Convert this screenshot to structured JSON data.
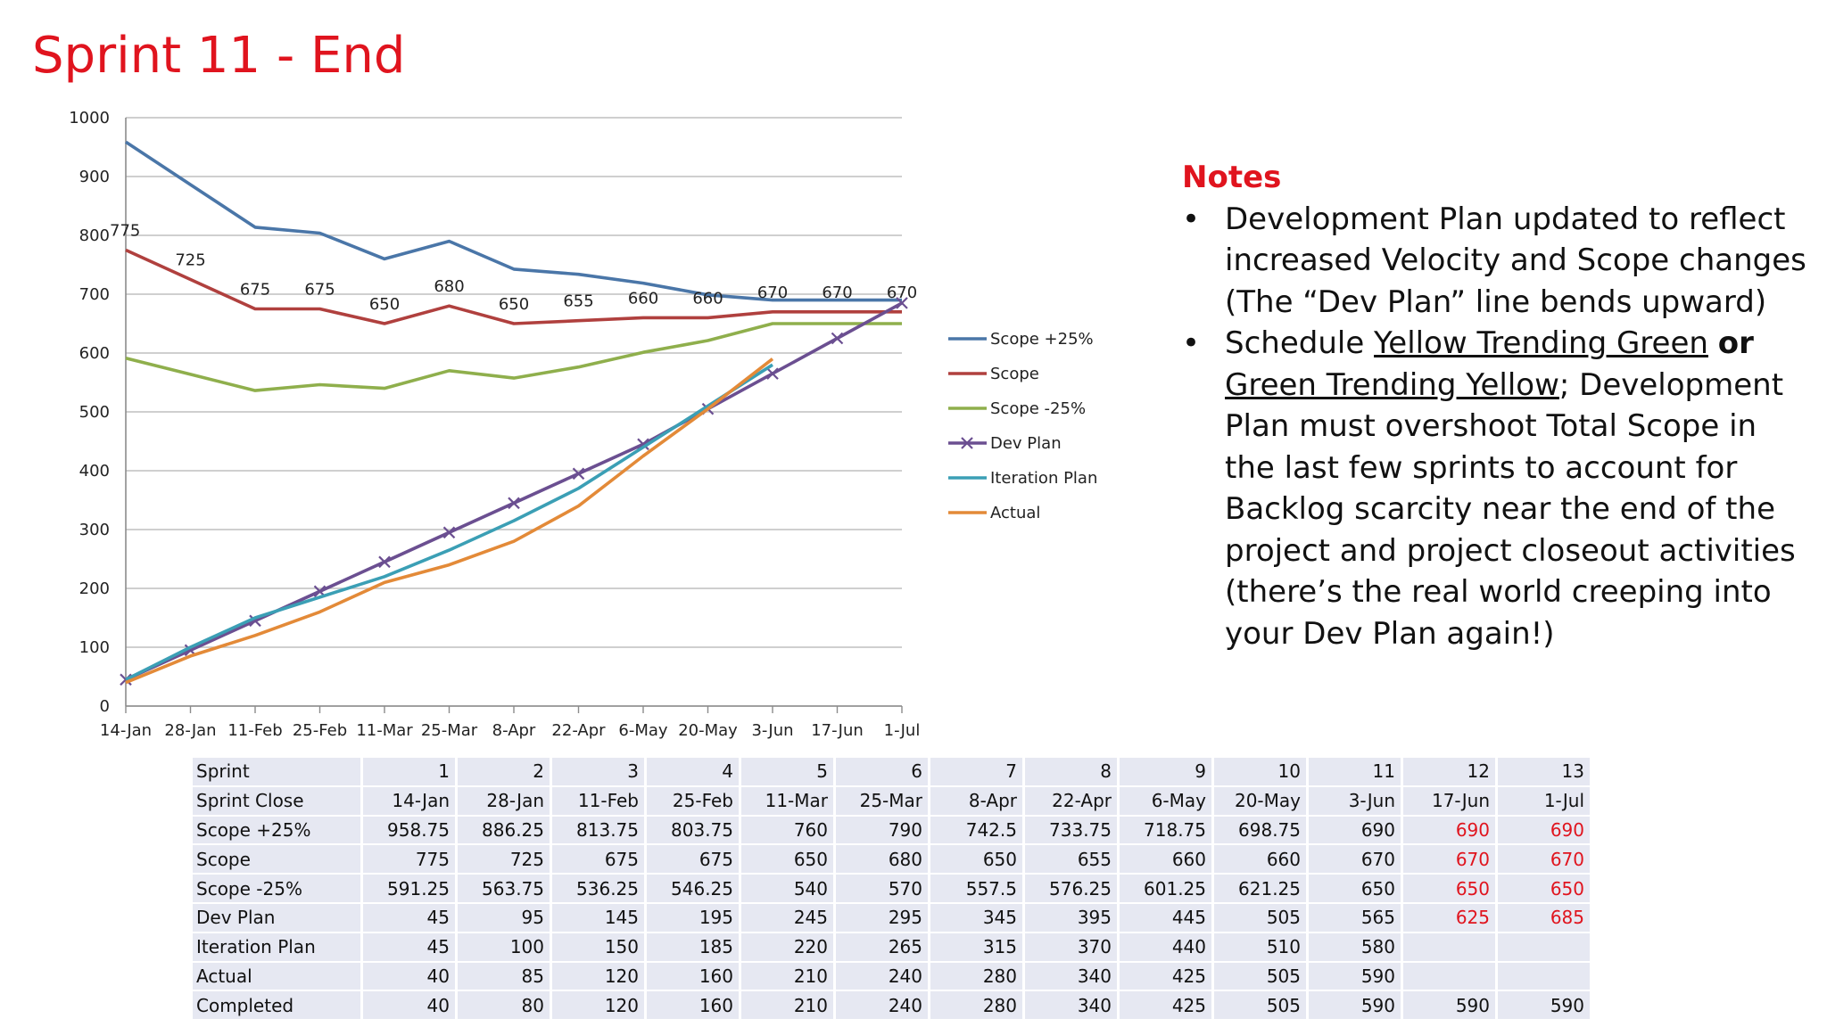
{
  "title": "Sprint 11 - End",
  "chart_data": {
    "type": "line",
    "categories": [
      "14-Jan",
      "28-Jan",
      "11-Feb",
      "25-Feb",
      "11-Mar",
      "25-Mar",
      "8-Apr",
      "22-Apr",
      "6-May",
      "20-May",
      "3-Jun",
      "17-Jun",
      "1-Jul"
    ],
    "ylim": [
      0,
      1000
    ],
    "yticks": [
      "0",
      "100",
      "200",
      "300",
      "400",
      "500",
      "600",
      "700",
      "800",
      "900",
      "1000"
    ],
    "grid": "horizontal",
    "legend": "right",
    "series": [
      {
        "name": "Scope +25%",
        "color": "#4a76a8",
        "values": [
          958.75,
          886.25,
          813.75,
          803.75,
          760,
          790,
          742.5,
          733.75,
          718.75,
          698.75,
          690,
          690,
          690
        ]
      },
      {
        "name": "Scope",
        "color": "#b0403e",
        "values": [
          775,
          725,
          675,
          675,
          650,
          680,
          650,
          655,
          660,
          660,
          670,
          670,
          670
        ],
        "data_labels": [
          "775",
          "725",
          "675",
          "675",
          "650",
          "680",
          "650",
          "655",
          "660",
          "660",
          "670",
          "670",
          "670"
        ]
      },
      {
        "name": "Scope -25%",
        "color": "#8faf4c",
        "values": [
          591.25,
          563.75,
          536.25,
          546.25,
          540,
          570,
          557.5,
          576.25,
          601.25,
          621.25,
          650,
          650,
          650
        ]
      },
      {
        "name": "Dev Plan",
        "color": "#6b4f91",
        "marker": "x",
        "values": [
          45,
          95,
          145,
          195,
          245,
          295,
          345,
          395,
          445,
          505,
          565,
          625,
          685
        ]
      },
      {
        "name": "Iteration Plan",
        "color": "#3b9fb5",
        "values": [
          45,
          100,
          150,
          185,
          220,
          265,
          315,
          370,
          440,
          510,
          580,
          null,
          null
        ]
      },
      {
        "name": "Actual",
        "color": "#e38a38",
        "values": [
          40,
          85,
          120,
          160,
          210,
          240,
          280,
          340,
          425,
          505,
          590,
          null,
          null
        ]
      }
    ]
  },
  "notes": {
    "heading": "Notes",
    "bullet_char": "•",
    "item1": "Development Plan updated to reflect increased Velocity and Scope changes (The “Dev Plan” line bends upward)",
    "item2": {
      "p1": "Schedule ",
      "u1": "Yellow Trending Green",
      "p2": " ",
      "b1": "or",
      "p3": " ",
      "u2": "Green Trending Yellow",
      "p4": "; Development Plan must overshoot Total Scope in the last few sprints to account for Backlog scarcity near the end of the project and project closeout activities (there’s the real world creeping into your Dev Plan again!)"
    }
  },
  "table": {
    "rows": [
      {
        "label": "Sprint",
        "cells": [
          "1",
          "2",
          "3",
          "4",
          "5",
          "6",
          "7",
          "8",
          "9",
          "10",
          "11",
          "12",
          "13"
        ]
      },
      {
        "label": "Sprint Close",
        "cells": [
          "14-Jan",
          "28-Jan",
          "11-Feb",
          "25-Feb",
          "11-Mar",
          "25-Mar",
          "8-Apr",
          "22-Apr",
          "6-May",
          "20-May",
          "3-Jun",
          "17-Jun",
          "1-Jul"
        ]
      },
      {
        "label": "Scope +25%",
        "cells": [
          "958.75",
          "886.25",
          "813.75",
          "803.75",
          "760",
          "790",
          "742.5",
          "733.75",
          "718.75",
          "698.75",
          "690",
          "690",
          "690"
        ],
        "red_from": 11
      },
      {
        "label": "Scope",
        "cells": [
          "775",
          "725",
          "675",
          "675",
          "650",
          "680",
          "650",
          "655",
          "660",
          "660",
          "670",
          "670",
          "670"
        ],
        "red_from": 11
      },
      {
        "label": "Scope -25%",
        "cells": [
          "591.25",
          "563.75",
          "536.25",
          "546.25",
          "540",
          "570",
          "557.5",
          "576.25",
          "601.25",
          "621.25",
          "650",
          "650",
          "650"
        ],
        "red_from": 11
      },
      {
        "label": "Dev Plan",
        "cells": [
          "45",
          "95",
          "145",
          "195",
          "245",
          "295",
          "345",
          "395",
          "445",
          "505",
          "565",
          "625",
          "685"
        ],
        "red_from": 11
      },
      {
        "label": "Iteration Plan",
        "cells": [
          "45",
          "100",
          "150",
          "185",
          "220",
          "265",
          "315",
          "370",
          "440",
          "510",
          "580",
          "",
          ""
        ]
      },
      {
        "label": "Actual",
        "cells": [
          "40",
          "85",
          "120",
          "160",
          "210",
          "240",
          "280",
          "340",
          "425",
          "505",
          "590",
          "",
          ""
        ]
      },
      {
        "label": "Completed",
        "cells": [
          "40",
          "80",
          "120",
          "160",
          "210",
          "240",
          "280",
          "340",
          "425",
          "505",
          "590",
          "590",
          "590"
        ]
      }
    ]
  }
}
